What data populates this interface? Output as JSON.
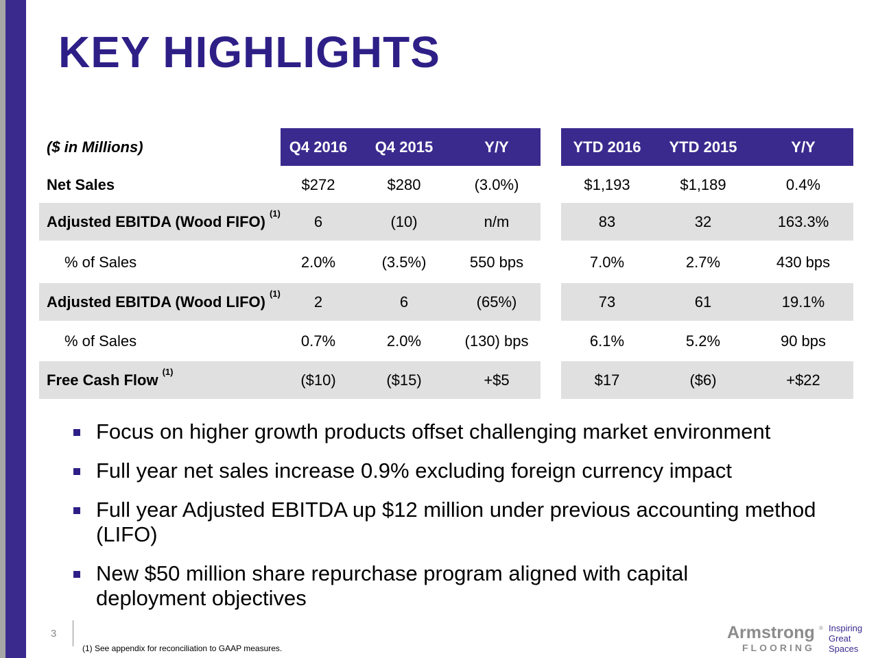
{
  "title": "KEY HIGHLIGHTS",
  "table": {
    "unit_label": "($ in Millions)",
    "headers": [
      "Q4 2016",
      "Q4 2015",
      "Y/Y",
      "YTD 2016",
      "YTD 2015",
      "Y/Y"
    ],
    "rows": [
      {
        "label": "Net Sales",
        "sup": "",
        "values": [
          "$272",
          "$280",
          "(3.0%)",
          "$1,193",
          "$1,189",
          "0.4%"
        ]
      },
      {
        "label": "Adjusted EBITDA (Wood FIFO)",
        "sup": "(1)",
        "values": [
          "6",
          "(10)",
          "n/m",
          "83",
          "32",
          "163.3%"
        ]
      },
      {
        "label": "% of Sales",
        "sup": "",
        "values": [
          "2.0%",
          "(3.5%)",
          "550 bps",
          "7.0%",
          "2.7%",
          "430 bps"
        ]
      },
      {
        "label": "Adjusted EBITDA (Wood LIFO)",
        "sup": "(1)",
        "values": [
          "2",
          "6",
          "(65%)",
          "73",
          "61",
          "19.1%"
        ]
      },
      {
        "label": "% of Sales",
        "sup": "",
        "values": [
          "0.7%",
          "2.0%",
          "(130) bps",
          "6.1%",
          "5.2%",
          "90 bps"
        ]
      },
      {
        "label": "Free Cash Flow",
        "sup": "(1)",
        "values": [
          "($10)",
          "($15)",
          "+$5",
          "$17",
          "($6)",
          "+$22"
        ]
      }
    ]
  },
  "bullets": [
    "Focus on higher growth products offset challenging market environment",
    "Full year net sales increase 0.9% excluding foreign currency impact",
    "Full year Adjusted EBITDA up $12 million under previous accounting method (LIFO)",
    "New $50 million share repurchase program aligned with capital deployment objectives"
  ],
  "page_number": "3",
  "footnote": "(1)    See appendix for reconciliation to GAAP measures.",
  "logo": {
    "brand": "Armstrong",
    "sub": "FLOORING",
    "tagline_1": "Inspiring",
    "tagline_2": "Great",
    "tagline_3": "Spaces",
    "registered": "®"
  },
  "colors": {
    "accent": "#3b2a8e",
    "title": "#2e1f87",
    "shade": "#e0e0e0",
    "side_gray": "#a6a6a6"
  }
}
